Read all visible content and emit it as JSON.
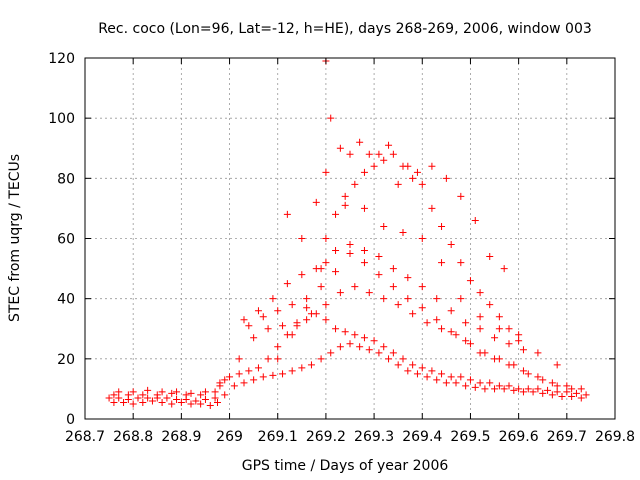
{
  "chart_data": {
    "type": "scatter",
    "title": "Rec. coco (Lon=96, Lat=-12, h=HE), days 268-269, 2006, window 003",
    "xlabel": "GPS time / Days of year 2006",
    "ylabel": "STEC from uqrg / TECUs",
    "xlim": [
      268.7,
      269.8
    ],
    "ylim": [
      0,
      120
    ],
    "xticks": [
      "268.7",
      "268.8",
      "268.9",
      "269",
      "269.1",
      "269.2",
      "269.3",
      "269.4",
      "269.5",
      "269.6",
      "269.7",
      "269.8"
    ],
    "yticks": [
      "0",
      "20",
      "40",
      "60",
      "80",
      "100",
      "120"
    ],
    "grid": true,
    "marker": "+",
    "color": "#ff0000",
    "series": [
      {
        "x": [
          268.76,
          268.78,
          268.8,
          268.82,
          268.84,
          268.86,
          268.88,
          268.9,
          268.92,
          268.94,
          268.96,
          268.975,
          268.99,
          269.01,
          269.03,
          269.05,
          269.07,
          269.09,
          269.11,
          269.13,
          269.15,
          269.17,
          269.19,
          269.21,
          269.23,
          269.25,
          269.27,
          269.29,
          269.31,
          269.33,
          269.35,
          269.37,
          269.39,
          269.41,
          269.43,
          269.45,
          269.47,
          269.49,
          269.51,
          269.53,
          269.55,
          269.57,
          269.59,
          269.61,
          269.63,
          269.65,
          269.67,
          269.69,
          269.71,
          269.73
        ],
        "y": [
          5.5,
          5.5,
          5.0,
          5.5,
          6.0,
          5.5,
          5.0,
          5.5,
          5.0,
          5.0,
          4.5,
          5.5,
          8.0,
          11,
          12,
          13,
          14,
          14.5,
          15,
          16,
          17,
          18,
          20,
          22,
          24,
          25,
          24,
          23,
          22,
          20,
          18,
          16,
          15,
          14,
          13,
          12,
          12,
          11,
          10.5,
          10,
          10,
          10,
          9.5,
          9,
          9,
          8.5,
          8,
          7.5,
          7.5,
          7
        ]
      },
      {
        "x": [
          268.75,
          268.77,
          268.79,
          268.81,
          268.83,
          268.85,
          268.87,
          268.89,
          268.91,
          268.93,
          268.95,
          268.97,
          268.98,
          269.0,
          269.02,
          269.04,
          269.06,
          269.08,
          269.1,
          269.12,
          269.14,
          269.16,
          269.18,
          269.2,
          269.22,
          269.24,
          269.26,
          269.28,
          269.3,
          269.32,
          269.34,
          269.36,
          269.38,
          269.4,
          269.42,
          269.44,
          269.46,
          269.48,
          269.5,
          269.52,
          269.54,
          269.56,
          269.58,
          269.6,
          269.62,
          269.64,
          269.66,
          269.68,
          269.7,
          269.72,
          269.74
        ],
        "y": [
          7,
          7,
          6.5,
          7,
          7,
          7,
          7,
          6.5,
          6.5,
          6,
          6.5,
          7,
          11,
          14,
          15,
          16,
          17,
          20,
          24,
          28,
          31,
          33,
          35,
          33,
          30,
          29,
          28,
          27,
          26,
          24,
          22,
          20,
          18,
          17,
          16,
          15,
          14,
          14,
          13,
          12,
          12,
          11,
          11,
          10,
          10,
          10,
          9.5,
          9,
          9,
          8.5,
          8
        ]
      },
      {
        "x": [
          268.76,
          268.79,
          268.82,
          268.85,
          268.88,
          268.91,
          268.94,
          268.97,
          268.99,
          269.02,
          269.05,
          269.08,
          269.11,
          269.14,
          269.17,
          269.2,
          269.23,
          269.26,
          269.29,
          269.32,
          269.35,
          269.38,
          269.41,
          269.44,
          269.47,
          269.5,
          269.53,
          269.56,
          269.59,
          269.62,
          269.65,
          269.68,
          269.71
        ],
        "y": [
          8,
          8,
          8,
          8,
          8.5,
          8,
          8,
          9,
          13,
          20,
          27,
          30,
          31,
          32,
          35,
          38,
          42,
          44,
          42,
          40,
          38,
          35,
          32,
          30,
          28,
          25,
          22,
          20,
          18,
          15,
          13,
          11,
          10
        ]
      },
      {
        "x": [
          268.77,
          268.8,
          268.83,
          268.86,
          268.89,
          268.92,
          268.95,
          268.98,
          269.04,
          269.07,
          269.1,
          269.13,
          269.16,
          269.19,
          269.22,
          269.25,
          269.28,
          269.31,
          269.34,
          269.37,
          269.4,
          269.43,
          269.46,
          269.49,
          269.52,
          269.55,
          269.58,
          269.61,
          269.64,
          269.67,
          269.7,
          269.73
        ],
        "y": [
          9,
          9,
          9.5,
          9,
          9,
          8.5,
          9,
          12,
          31,
          34,
          36,
          38,
          40,
          44,
          49,
          55,
          52,
          48,
          44,
          40,
          37,
          33,
          29,
          26,
          22,
          20,
          18,
          16,
          14,
          12,
          11,
          10
        ]
      },
      {
        "x": [
          269.03,
          269.06,
          269.09,
          269.12,
          269.15,
          269.18,
          269.2,
          269.22,
          269.25,
          269.28,
          269.31,
          269.34,
          269.37,
          269.4,
          269.43,
          269.46,
          269.49,
          269.52,
          269.55,
          269.58,
          269.61
        ],
        "y": [
          33,
          36,
          40,
          45,
          48,
          50,
          52,
          56,
          58,
          56,
          54,
          50,
          47,
          44,
          40,
          36,
          32,
          30,
          27,
          25,
          23
        ]
      },
      {
        "x": [
          269.1,
          269.13,
          269.16,
          269.19,
          269.2,
          269.22,
          269.24,
          269.26,
          269.28,
          269.3,
          269.32,
          269.34,
          269.36,
          269.38,
          269.4,
          269.42,
          269.44,
          269.46,
          269.48,
          269.5,
          269.52,
          269.54,
          269.56,
          269.58,
          269.6
        ],
        "y": [
          20,
          28,
          37,
          50,
          60,
          68,
          74,
          78,
          82,
          84,
          86,
          88,
          84,
          80,
          78,
          70,
          64,
          58,
          52,
          46,
          42,
          38,
          34,
          30,
          28
        ]
      },
      {
        "x": [
          269.12,
          269.15,
          269.18,
          269.2,
          269.21,
          269.23,
          269.25,
          269.27,
          269.29,
          269.31,
          269.33,
          269.35,
          269.37,
          269.39,
          269.42,
          269.45,
          269.48,
          269.51,
          269.54,
          269.57
        ],
        "y": [
          68,
          60,
          72,
          82,
          100,
          90,
          88,
          92,
          88,
          88,
          91,
          78,
          84,
          82,
          84,
          80,
          74,
          66,
          54,
          50
        ]
      },
      {
        "x": [
          269.2,
          269.24,
          269.28,
          269.32,
          269.36,
          269.4,
          269.44,
          269.48,
          269.52,
          269.56,
          269.6,
          269.64,
          269.68
        ],
        "y": [
          119,
          71,
          70,
          64,
          62,
          60,
          52,
          40,
          34,
          30,
          26,
          22,
          18
        ]
      }
    ]
  }
}
